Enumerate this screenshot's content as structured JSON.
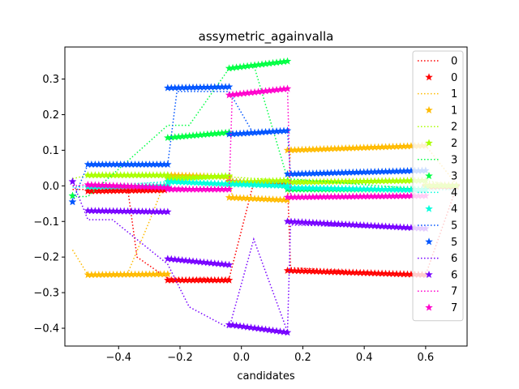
{
  "chart_data": {
    "type": "line",
    "title": "assymetric_againvalla",
    "xlabel": "candidates",
    "ylabel": "",
    "xlim": [
      -0.575,
      0.735
    ],
    "ylim": [
      -0.45,
      0.39
    ],
    "xticks": [
      -0.4,
      -0.2,
      0.0,
      0.2,
      0.4,
      0.6
    ],
    "xtick_labels": [
      "−0.4",
      "−0.2",
      "0.0",
      "0.2",
      "0.4",
      "0.6"
    ],
    "yticks": [
      -0.4,
      -0.3,
      -0.2,
      -0.1,
      0.0,
      0.1,
      0.2,
      0.3
    ],
    "ytick_labels": [
      "−0.4",
      "−0.3",
      "−0.2",
      "−0.1",
      "0.0",
      "0.1",
      "0.2",
      "0.3"
    ],
    "grid": false,
    "legend_position": "top-right",
    "series": [
      {
        "name": "0",
        "color": "#ff0000",
        "segments": [
          [
            -0.5,
            -0.015,
            -0.25,
            -0.012
          ],
          [
            -0.24,
            -0.265,
            -0.04,
            -0.265
          ],
          [
            -0.04,
            0.012,
            0.15,
            0.008
          ],
          [
            0.15,
            -0.238,
            0.6,
            -0.25
          ],
          [
            0.6,
            -0.002,
            0.7,
            -0.002
          ]
        ],
        "line": [
          [
            -0.55,
            -0.01
          ],
          [
            -0.5,
            -0.01
          ],
          [
            -0.37,
            -0.01
          ],
          [
            -0.34,
            -0.2
          ],
          [
            -0.24,
            -0.26
          ],
          [
            -0.04,
            -0.26
          ],
          [
            0.04,
            0.01
          ],
          [
            0.15,
            0.01
          ],
          [
            0.16,
            -0.23
          ],
          [
            0.6,
            -0.25
          ],
          [
            0.7,
            -0.005
          ]
        ]
      },
      {
        "name": "1",
        "color": "#ffbb00",
        "segments": [
          [
            -0.5,
            -0.25,
            -0.24,
            -0.248
          ],
          [
            -0.24,
            0.03,
            -0.04,
            0.025
          ],
          [
            -0.04,
            -0.033,
            0.15,
            -0.04
          ],
          [
            0.15,
            0.1,
            0.6,
            0.113
          ],
          [
            0.6,
            0.002,
            0.7,
            0.002
          ]
        ],
        "line": [
          [
            -0.55,
            -0.18
          ],
          [
            -0.5,
            -0.25
          ],
          [
            -0.37,
            -0.245
          ],
          [
            -0.3,
            -0.1
          ],
          [
            -0.24,
            0.03
          ],
          [
            -0.04,
            0.025
          ],
          [
            -0.03,
            -0.03
          ],
          [
            0.15,
            -0.04
          ],
          [
            0.16,
            0.1
          ],
          [
            0.6,
            0.113
          ],
          [
            0.7,
            0.005
          ]
        ]
      },
      {
        "name": "2",
        "color": "#aaff00",
        "segments": [
          [
            -0.5,
            0.03,
            -0.24,
            0.03
          ],
          [
            -0.24,
            0.02,
            -0.04,
            0.028
          ],
          [
            -0.04,
            0.01,
            0.15,
            0.015
          ],
          [
            0.15,
            0.01,
            0.6,
            0.015
          ],
          [
            0.6,
            0.0,
            0.7,
            0.0
          ]
        ],
        "line": [
          [
            -0.55,
            0.02
          ],
          [
            -0.5,
            0.03
          ],
          [
            -0.24,
            0.03
          ],
          [
            -0.04,
            0.025
          ],
          [
            0.15,
            0.015
          ],
          [
            0.6,
            0.015
          ],
          [
            0.7,
            0.0
          ]
        ]
      },
      {
        "name": "3",
        "color": "#00ff44",
        "segments": [
          [
            -0.55,
            -0.028,
            -0.55,
            -0.028
          ],
          [
            -0.24,
            0.135,
            -0.04,
            0.15
          ],
          [
            -0.04,
            0.33,
            0.15,
            0.35
          ],
          [
            0.15,
            -0.01,
            0.6,
            -0.01
          ]
        ],
        "line": [
          [
            -0.55,
            -0.03
          ],
          [
            -0.5,
            -0.03
          ],
          [
            -0.24,
            0.17
          ],
          [
            -0.17,
            0.17
          ],
          [
            -0.04,
            0.33
          ],
          [
            0.04,
            0.34
          ],
          [
            0.15,
            0.02
          ],
          [
            0.6,
            -0.01
          ]
        ]
      },
      {
        "name": "4",
        "color": "#00ffdd",
        "segments": [
          [
            -0.5,
            -0.003,
            -0.24,
            0.0
          ],
          [
            -0.24,
            0.012,
            -0.04,
            0.005
          ],
          [
            -0.04,
            0.005,
            0.15,
            0.0
          ],
          [
            0.15,
            -0.005,
            0.6,
            -0.012
          ]
        ],
        "line": [
          [
            -0.55,
            -0.003
          ],
          [
            -0.5,
            -0.003
          ],
          [
            -0.24,
            0.012
          ],
          [
            -0.04,
            0.005
          ],
          [
            0.15,
            -0.005
          ],
          [
            0.6,
            -0.012
          ],
          [
            0.7,
            -0.01
          ]
        ]
      },
      {
        "name": "5",
        "color": "#0055ff",
        "segments": [
          [
            -0.55,
            -0.045,
            -0.55,
            -0.045
          ],
          [
            -0.5,
            0.06,
            -0.24,
            0.06
          ],
          [
            -0.24,
            0.275,
            -0.04,
            0.278
          ],
          [
            -0.04,
            0.145,
            0.15,
            0.155
          ],
          [
            0.15,
            0.033,
            0.6,
            0.043
          ]
        ],
        "line": [
          [
            -0.55,
            -0.045
          ],
          [
            -0.5,
            0.06
          ],
          [
            -0.24,
            0.06
          ],
          [
            -0.21,
            0.265
          ],
          [
            -0.04,
            0.265
          ],
          [
            0.04,
            0.145
          ],
          [
            0.15,
            0.155
          ],
          [
            0.16,
            0.03
          ],
          [
            0.6,
            0.043
          ]
        ]
      },
      {
        "name": "6",
        "color": "#7700ff",
        "segments": [
          [
            -0.55,
            0.012,
            -0.55,
            0.012
          ],
          [
            -0.5,
            -0.07,
            -0.24,
            -0.073
          ],
          [
            -0.24,
            -0.205,
            -0.04,
            -0.222
          ],
          [
            -0.04,
            -0.39,
            0.15,
            -0.412
          ],
          [
            0.15,
            -0.1,
            0.6,
            -0.12
          ]
        ],
        "line": [
          [
            -0.55,
            0.012
          ],
          [
            -0.5,
            -0.095
          ],
          [
            -0.42,
            -0.095
          ],
          [
            -0.24,
            -0.22
          ],
          [
            -0.17,
            -0.34
          ],
          [
            -0.04,
            -0.4
          ],
          [
            0.04,
            -0.15
          ],
          [
            0.15,
            -0.41
          ],
          [
            0.16,
            -0.11
          ],
          [
            0.6,
            -0.12
          ]
        ]
      },
      {
        "name": "7",
        "color": "#ff00cc",
        "segments": [
          [
            -0.5,
            0.003,
            -0.24,
            -0.005
          ],
          [
            -0.24,
            -0.01,
            -0.04,
            -0.01
          ],
          [
            -0.04,
            0.255,
            0.15,
            0.273
          ],
          [
            0.15,
            -0.032,
            0.6,
            -0.028
          ]
        ],
        "line": [
          [
            -0.55,
            0.0
          ],
          [
            -0.5,
            0.003
          ],
          [
            -0.24,
            -0.005
          ],
          [
            -0.04,
            -0.01
          ],
          [
            -0.03,
            0.255
          ],
          [
            0.15,
            0.275
          ],
          [
            0.16,
            -0.035
          ],
          [
            0.6,
            -0.028
          ]
        ]
      }
    ]
  }
}
